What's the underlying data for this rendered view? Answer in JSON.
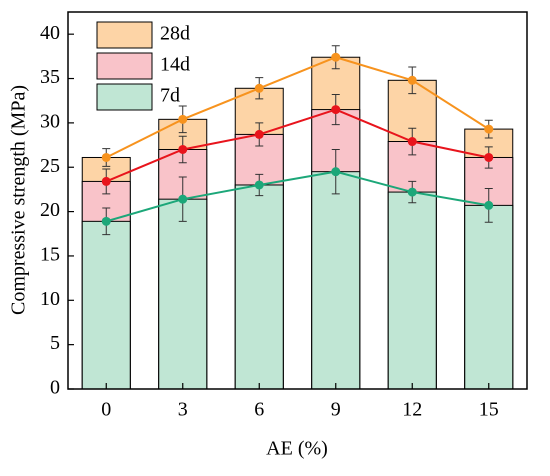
{
  "chart_data": {
    "type": "bar",
    "x_label": "AE (%)",
    "y_label": "Compressive strength (MPa)",
    "categories": [
      "0",
      "3",
      "6",
      "9",
      "12",
      "15"
    ],
    "series": [
      {
        "name": "28d",
        "color": "#f7931e",
        "fill": "#fdd4a6",
        "values": [
          26.1,
          30.4,
          33.9,
          37.4,
          34.8,
          29.3
        ],
        "errors": [
          1.0,
          1.5,
          1.2,
          1.3,
          1.5,
          1.0
        ]
      },
      {
        "name": "14d",
        "color": "#e8141c",
        "fill": "#f9c3c9",
        "values": [
          23.4,
          27.0,
          28.7,
          31.5,
          27.9,
          26.1
        ],
        "errors": [
          1.4,
          1.5,
          1.3,
          1.7,
          1.5,
          1.2
        ]
      },
      {
        "name": "7d",
        "color": "#1ca779",
        "fill": "#c0e6d4",
        "values": [
          18.9,
          21.4,
          23.0,
          24.5,
          22.2,
          20.7
        ],
        "errors": [
          1.5,
          2.5,
          1.2,
          2.5,
          1.2,
          1.9
        ]
      }
    ],
    "ylim": [
      0,
      42.5
    ],
    "yticks": [
      0,
      5,
      10,
      15,
      20,
      25,
      30,
      35,
      40
    ],
    "legend": "top-left"
  }
}
